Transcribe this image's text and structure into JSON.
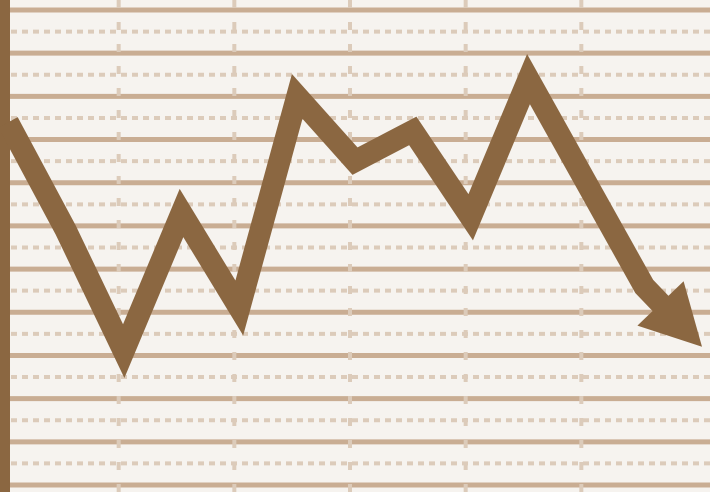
{
  "chart_data": {
    "type": "line",
    "title": "",
    "xlabel": "",
    "ylabel": "",
    "x": [
      0,
      1,
      2,
      3,
      4,
      5,
      6,
      7,
      8,
      9,
      10,
      11,
      12
    ],
    "series": [
      {
        "values": [
          8.4,
          5.9,
          3.1,
          6.3,
          4.1,
          9.0,
          7.5,
          8.2,
          6.2,
          9.4,
          7.0,
          4.6,
          3.2
        ]
      }
    ],
    "xlim": [
      0,
      12
    ],
    "ylim": [
      0,
      11
    ],
    "grid": true,
    "legend": "none",
    "end_marker": "arrow"
  },
  "colors": {
    "background": "#f6f3ef",
    "line": "#8b6741",
    "axis": "#8b6741",
    "grid_major": "#c9ad93",
    "grid_minor": "#dccbba"
  }
}
